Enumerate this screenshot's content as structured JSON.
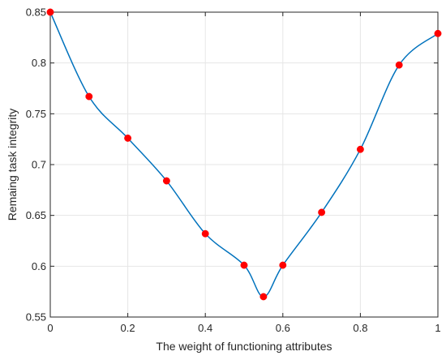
{
  "chart_data": {
    "type": "line",
    "xlabel": "The weight of functioning attributes",
    "ylabel": "Remaing task integrity",
    "xlim": [
      0,
      1
    ],
    "ylim": [
      0.55,
      0.85
    ],
    "x_ticks": [
      "0",
      "0.2",
      "0.4",
      "0.6",
      "0.8",
      "1"
    ],
    "y_ticks": [
      "0.55",
      "0.6",
      "0.65",
      "0.7",
      "0.75",
      "0.8",
      "0.85"
    ],
    "grid": true,
    "series": [
      {
        "x": [
          0,
          0.1,
          0.2,
          0.3,
          0.4,
          0.5,
          0.55,
          0.6,
          0.7,
          0.8,
          0.9,
          1.0
        ],
        "values": [
          0.85,
          0.767,
          0.726,
          0.684,
          0.632,
          0.601,
          0.57,
          0.601,
          0.653,
          0.715,
          0.798,
          0.829
        ],
        "line_color": "#0072BD",
        "marker_color": "#FF0000"
      }
    ]
  }
}
